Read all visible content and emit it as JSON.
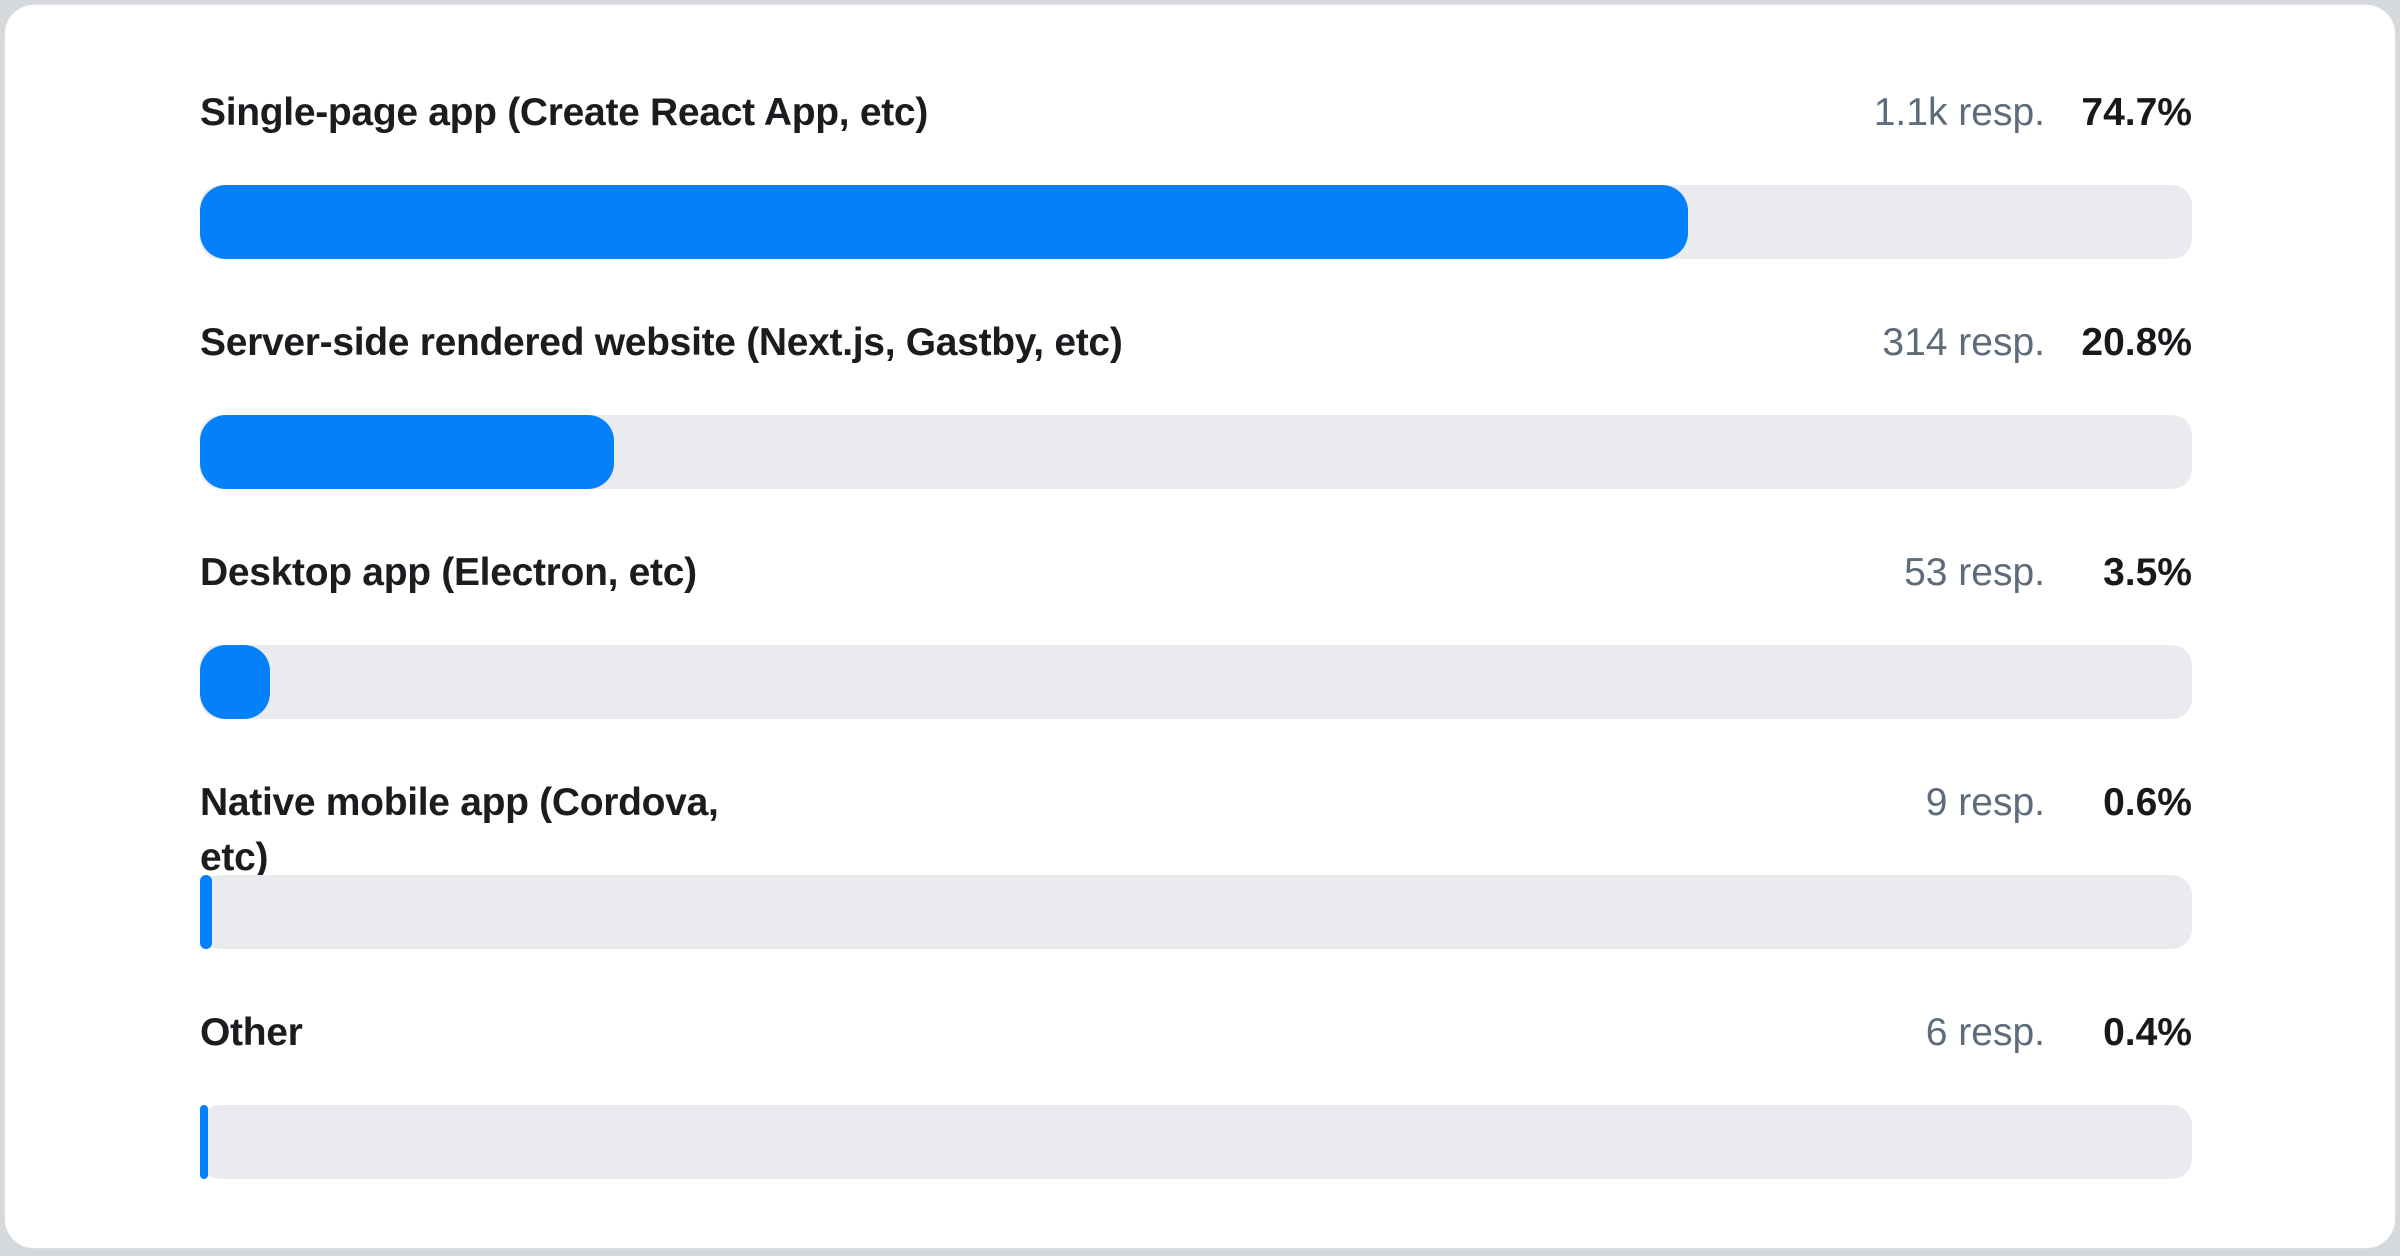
{
  "page": {
    "frame_background": "#d5d9dc",
    "card_background": "#ffffff"
  },
  "colors": {
    "bar_fill": "#0480fb",
    "bar_track": "#e9ebee",
    "label_text": "#1b1c1f",
    "respondents_text": "#5e6b7a",
    "percent_text": "#17191d"
  },
  "chart_data": {
    "type": "bar",
    "orientation": "horizontal",
    "title": "",
    "xlabel": "",
    "ylabel": "",
    "xlim": [
      0,
      100
    ],
    "unit": "percent",
    "grid": false,
    "legend": false,
    "categories": [
      "Single-page app (Create React App, etc)",
      "Server-side rendered website (Next.js, Gastby, etc)",
      "Desktop app (Electron, etc)",
      "Native mobile app (Cordova, etc)",
      "Other"
    ],
    "values": [
      74.7,
      20.8,
      3.5,
      0.6,
      0.4
    ],
    "value_labels": [
      "74.7%",
      "20.8%",
      "3.5%",
      "0.6%",
      "0.4%"
    ],
    "respondent_labels": [
      "1.1k resp.",
      "314 resp.",
      "53 resp.",
      "9 resp.",
      "6 resp."
    ]
  },
  "rows": [
    {
      "label": "Single-page app (Create React App, etc)",
      "respondents": "1.1k resp.",
      "percent": "74.7%",
      "value": 74.7
    },
    {
      "label": "Server-side rendered website (Next.js, Gastby, etc)",
      "respondents": "314 resp.",
      "percent": "20.8%",
      "value": 20.8
    },
    {
      "label": "Desktop app (Electron, etc)",
      "respondents": "53 resp.",
      "percent": "3.5%",
      "value": 3.5
    },
    {
      "label": "Native mobile app (Cordova,\netc)",
      "respondents": "9 resp.",
      "percent": "0.6%",
      "value": 0.6
    },
    {
      "label": "Other",
      "respondents": "6 resp.",
      "percent": "0.4%",
      "value": 0.4
    }
  ]
}
